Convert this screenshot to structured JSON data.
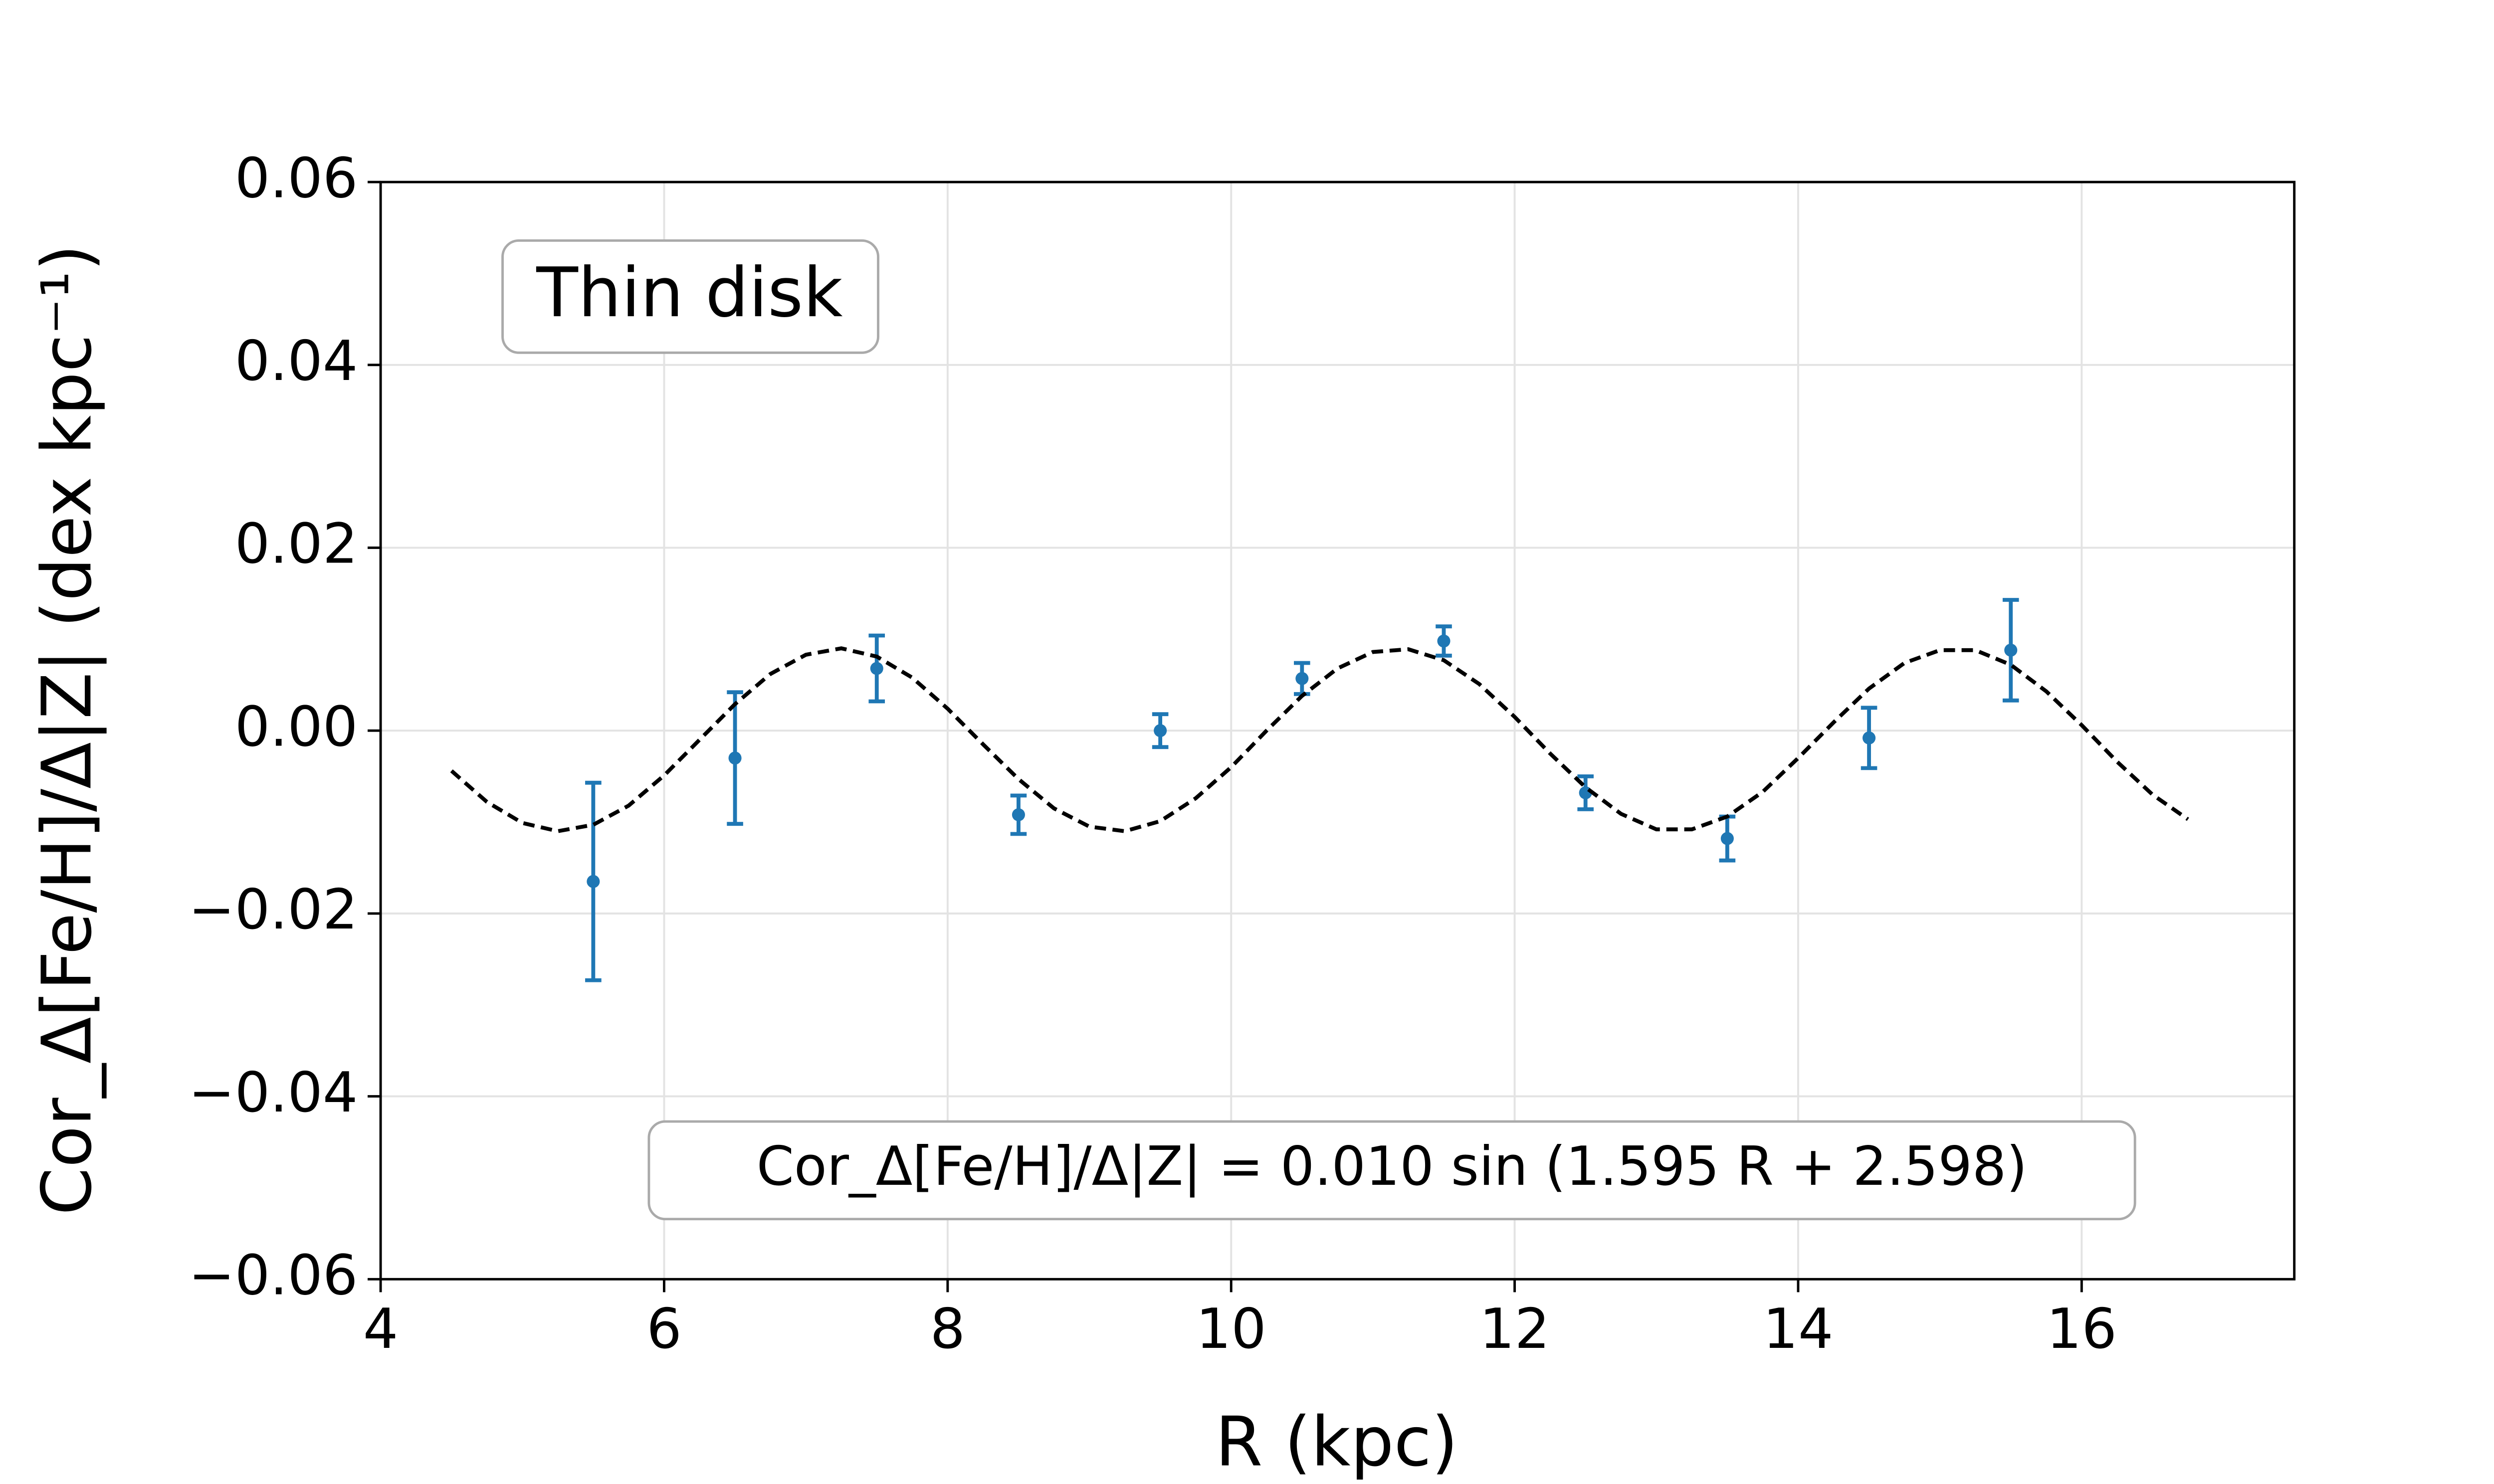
{
  "chart_data": {
    "type": "scatter",
    "xlabel": "R (kpc)",
    "ylabel": "Cor_Δ[Fe/H]/Δ|Z| (dex kpc⁻¹)",
    "annotations": [
      "Thin disk",
      "Cor_Δ[Fe/H]/Δ|Z| = 0.010 sin (1.595 R + 2.598)"
    ],
    "xlim": [
      4,
      17.5
    ],
    "xticks": [
      4,
      6,
      8,
      10,
      12,
      14,
      16
    ],
    "ylim": [
      -0.06,
      0.06
    ],
    "yticks": [
      {
        "value": -0.06,
        "label": "−0.06"
      },
      {
        "value": -0.04,
        "label": "−0.04"
      },
      {
        "value": -0.02,
        "label": "−0.02"
      },
      {
        "value": 0,
        "label": "0.00"
      },
      0.02,
      0.04,
      0.06
    ],
    "grid": true,
    "series": [
      {
        "type": "errorbar",
        "color": "#1f77b4",
        "x": [
          5.5,
          6.5,
          7.5,
          8.5,
          9.5,
          10.5,
          11.5,
          12.5,
          13.5,
          14.5,
          15.5
        ],
        "values": [
          -0.0165,
          -0.003,
          0.0068,
          -0.0092,
          0.0,
          0.0057,
          0.0098,
          -0.0068,
          -0.0118,
          -0.0008,
          0.0088
        ],
        "errors": [
          0.0108,
          0.0072,
          0.0036,
          0.0021,
          0.0018,
          0.0017,
          0.0016,
          0.0018,
          0.0024,
          0.0033,
          0.0055
        ]
      },
      {
        "type": "line",
        "color": "#000000",
        "linestyle": "dashed",
        "x": [
          4.5,
          4.75,
          5.0,
          5.25,
          5.5,
          5.75,
          6.0,
          6.25,
          6.5,
          6.75,
          7.0,
          7.25,
          7.5,
          7.75,
          8.0,
          8.25,
          8.5,
          8.75,
          9.0,
          9.25,
          9.5,
          9.75,
          10.0,
          10.25,
          10.5,
          10.75,
          11.0,
          11.25,
          11.5,
          11.75,
          12.0,
          12.25,
          12.5,
          12.75,
          13.0,
          13.25,
          13.5,
          13.75,
          14.0,
          14.25,
          14.5,
          14.75,
          15.0,
          15.25,
          15.5,
          15.75,
          16.0,
          16.25,
          16.5,
          16.75
        ],
        "values": [
          -0.0044,
          -0.0078,
          -0.0101,
          -0.011,
          -0.0103,
          -0.0082,
          -0.0049,
          -0.001,
          0.0029,
          0.0062,
          0.0083,
          0.009,
          0.0081,
          0.0058,
          0.0024,
          -0.0015,
          -0.0053,
          -0.0085,
          -0.0105,
          -0.011,
          -0.0099,
          -0.0074,
          -0.004,
          0.0,
          0.0038,
          0.0068,
          0.0086,
          0.0089,
          0.0077,
          0.0051,
          0.0015,
          -0.0025,
          -0.0062,
          -0.0091,
          -0.0108,
          -0.0108,
          -0.0094,
          -0.0067,
          -0.003,
          0.0009,
          0.0046,
          0.0074,
          0.0088,
          0.0088,
          0.0072,
          0.0043,
          0.0006,
          -0.0034,
          -0.007,
          -0.0097
        ]
      }
    ]
  }
}
